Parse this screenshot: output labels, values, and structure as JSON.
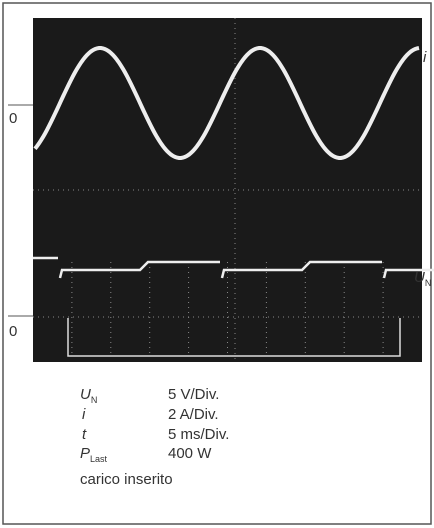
{
  "scope": {
    "trace_labels": [
      {
        "symbol": "i"
      },
      {
        "symbol": "U",
        "subscript": "N"
      }
    ],
    "zero_labels": [
      "0",
      "0"
    ]
  },
  "legend": {
    "rows": [
      {
        "symbol": "U",
        "subscript": "N",
        "value": "5 V/Div."
      },
      {
        "symbol": "i",
        "value": "2 A/Div."
      },
      {
        "symbol": "t",
        "value": "5 ms/Div."
      },
      {
        "symbol": "P",
        "subscript": "Last",
        "value": "400 W"
      }
    ],
    "note": "carico inserito"
  }
}
